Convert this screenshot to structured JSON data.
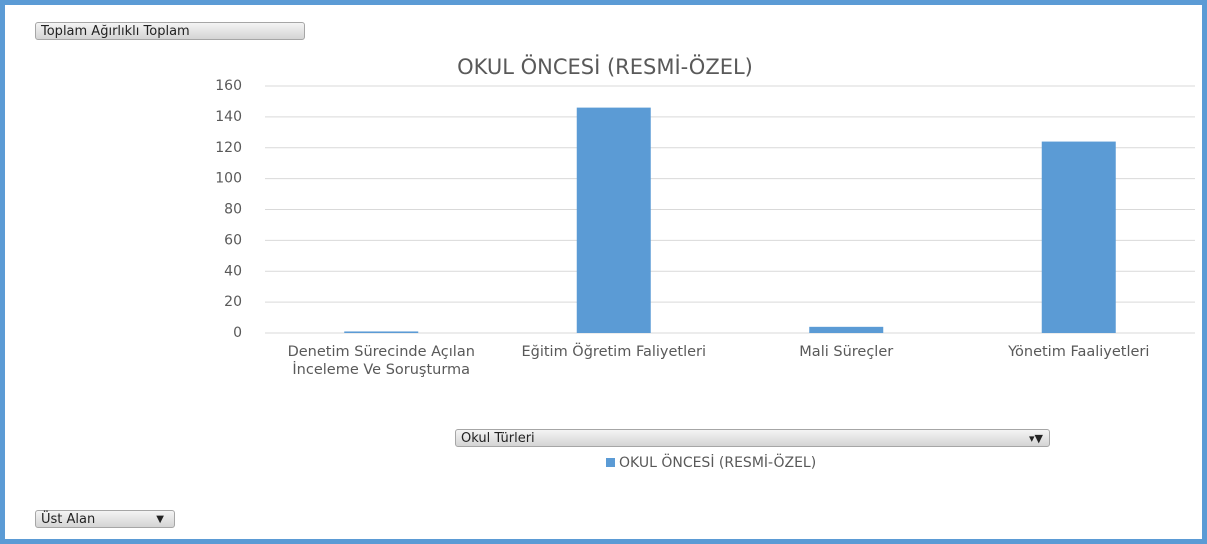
{
  "chart_data": {
    "type": "bar",
    "title": "OKUL ÖNCESİ (RESMİ-ÖZEL)",
    "categories": [
      "Denetim Sürecinde Açılan İnceleme Ve Soruşturma",
      "Eğitim Öğretim Faliyetleri",
      "Mali Süreçler",
      "Yönetim Faaliyetleri"
    ],
    "series": [
      {
        "name": "OKUL ÖNCESİ (RESMİ-ÖZEL)",
        "color": "#5b9bd5",
        "values": [
          1,
          146,
          4,
          124
        ]
      }
    ],
    "ylim": [
      0,
      160
    ],
    "yticks": [
      0,
      20,
      40,
      60,
      80,
      100,
      120,
      140,
      160
    ],
    "grid": true,
    "legend": "bottom"
  },
  "buttons": {
    "value_field": "Toplam Ağırlıklı Toplam",
    "legend_field": "Okul Türleri",
    "filter_field": "Üst Alan"
  }
}
